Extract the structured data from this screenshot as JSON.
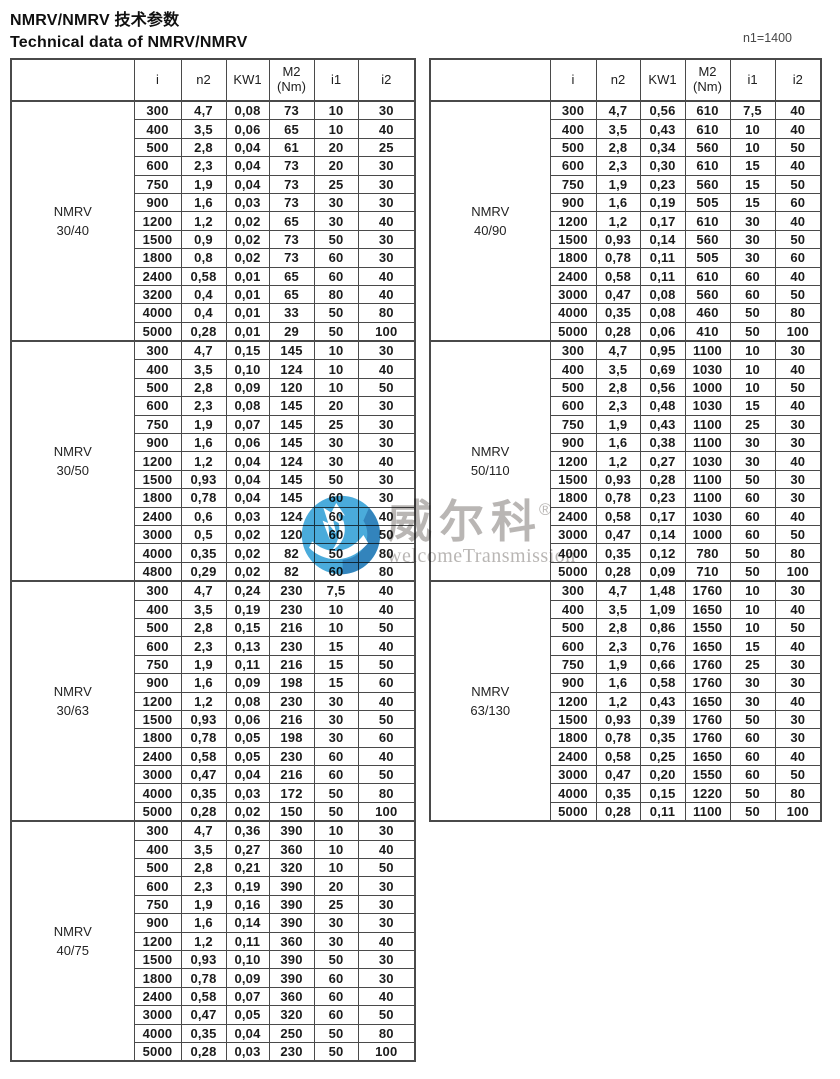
{
  "page": {
    "title_zh": "NMRV/NMRV 技术参数",
    "title_en": "Technical data of NMRV/NMRV",
    "note": "n1=1400"
  },
  "columns": [
    "i",
    "n2",
    "KW1",
    "M2\n(Nm)",
    "i1",
    "i2"
  ],
  "colors": {
    "border": "#4a4a4a",
    "text": "#1b1b1b",
    "logo_blue": "#3aa4d8",
    "logo_dark_blue": "#1d72b2",
    "watermark_gray": "#b3b0ae"
  },
  "watermark": {
    "brand_zh": "威尔科",
    "registered": "®",
    "brand_en": "welcomeTransmission"
  },
  "tables": [
    {
      "sections": [
        {
          "model": "NMRV",
          "size": "30/40",
          "rows": [
            [
              "300",
              "4,7",
              "0,08",
              "73",
              "10",
              "30"
            ],
            [
              "400",
              "3,5",
              "0,06",
              "65",
              "10",
              "40"
            ],
            [
              "500",
              "2,8",
              "0,04",
              "61",
              "20",
              "25"
            ],
            [
              "600",
              "2,3",
              "0,04",
              "73",
              "20",
              "30"
            ],
            [
              "750",
              "1,9",
              "0,04",
              "73",
              "25",
              "30"
            ],
            [
              "900",
              "1,6",
              "0,03",
              "73",
              "30",
              "30"
            ],
            [
              "1200",
              "1,2",
              "0,02",
              "65",
              "30",
              "40"
            ],
            [
              "1500",
              "0,9",
              "0,02",
              "73",
              "50",
              "30"
            ],
            [
              "1800",
              "0,8",
              "0,02",
              "73",
              "60",
              "30"
            ],
            [
              "2400",
              "0,58",
              "0,01",
              "65",
              "60",
              "40"
            ],
            [
              "3200",
              "0,4",
              "0,01",
              "65",
              "80",
              "40"
            ],
            [
              "4000",
              "0,4",
              "0,01",
              "33",
              "50",
              "80"
            ],
            [
              "5000",
              "0,28",
              "0,01",
              "29",
              "50",
              "100"
            ]
          ]
        },
        {
          "model": "NMRV",
          "size": "30/50",
          "rows": [
            [
              "300",
              "4,7",
              "0,15",
              "145",
              "10",
              "30"
            ],
            [
              "400",
              "3,5",
              "0,10",
              "124",
              "10",
              "40"
            ],
            [
              "500",
              "2,8",
              "0,09",
              "120",
              "10",
              "50"
            ],
            [
              "600",
              "2,3",
              "0,08",
              "145",
              "20",
              "30"
            ],
            [
              "750",
              "1,9",
              "0,07",
              "145",
              "25",
              "30"
            ],
            [
              "900",
              "1,6",
              "0,06",
              "145",
              "30",
              "30"
            ],
            [
              "1200",
              "1,2",
              "0,04",
              "124",
              "30",
              "40"
            ],
            [
              "1500",
              "0,93",
              "0,04",
              "145",
              "50",
              "30"
            ],
            [
              "1800",
              "0,78",
              "0,04",
              "145",
              "60",
              "30"
            ],
            [
              "2400",
              "0,6",
              "0,03",
              "124",
              "60",
              "40"
            ],
            [
              "3000",
              "0,5",
              "0,02",
              "120",
              "60",
              "50"
            ],
            [
              "4000",
              "0,35",
              "0,02",
              "82",
              "50",
              "80"
            ],
            [
              "4800",
              "0,29",
              "0,02",
              "82",
              "60",
              "80"
            ]
          ]
        },
        {
          "model": "NMRV",
          "size": "30/63",
          "rows": [
            [
              "300",
              "4,7",
              "0,24",
              "230",
              "7,5",
              "40"
            ],
            [
              "400",
              "3,5",
              "0,19",
              "230",
              "10",
              "40"
            ],
            [
              "500",
              "2,8",
              "0,15",
              "216",
              "10",
              "50"
            ],
            [
              "600",
              "2,3",
              "0,13",
              "230",
              "15",
              "40"
            ],
            [
              "750",
              "1,9",
              "0,11",
              "216",
              "15",
              "50"
            ],
            [
              "900",
              "1,6",
              "0,09",
              "198",
              "15",
              "60"
            ],
            [
              "1200",
              "1,2",
              "0,08",
              "230",
              "30",
              "40"
            ],
            [
              "1500",
              "0,93",
              "0,06",
              "216",
              "30",
              "50"
            ],
            [
              "1800",
              "0,78",
              "0,05",
              "198",
              "30",
              "60"
            ],
            [
              "2400",
              "0,58",
              "0,05",
              "230",
              "60",
              "40"
            ],
            [
              "3000",
              "0,47",
              "0,04",
              "216",
              "60",
              "50"
            ],
            [
              "4000",
              "0,35",
              "0,03",
              "172",
              "50",
              "80"
            ],
            [
              "5000",
              "0,28",
              "0,02",
              "150",
              "50",
              "100"
            ]
          ]
        },
        {
          "model": "NMRV",
          "size": "40/75",
          "rows": [
            [
              "300",
              "4,7",
              "0,36",
              "390",
              "10",
              "30"
            ],
            [
              "400",
              "3,5",
              "0,27",
              "360",
              "10",
              "40"
            ],
            [
              "500",
              "2,8",
              "0,21",
              "320",
              "10",
              "50"
            ],
            [
              "600",
              "2,3",
              "0,19",
              "390",
              "20",
              "30"
            ],
            [
              "750",
              "1,9",
              "0,16",
              "390",
              "25",
              "30"
            ],
            [
              "900",
              "1,6",
              "0,14",
              "390",
              "30",
              "30"
            ],
            [
              "1200",
              "1,2",
              "0,11",
              "360",
              "30",
              "40"
            ],
            [
              "1500",
              "0,93",
              "0,10",
              "390",
              "50",
              "30"
            ],
            [
              "1800",
              "0,78",
              "0,09",
              "390",
              "60",
              "30"
            ],
            [
              "2400",
              "0,58",
              "0,07",
              "360",
              "60",
              "40"
            ],
            [
              "3000",
              "0,47",
              "0,05",
              "320",
              "60",
              "50"
            ],
            [
              "4000",
              "0,35",
              "0,04",
              "250",
              "50",
              "80"
            ],
            [
              "5000",
              "0,28",
              "0,03",
              "230",
              "50",
              "100"
            ]
          ]
        }
      ]
    },
    {
      "sections": [
        {
          "model": "NMRV",
          "size": "40/90",
          "rows": [
            [
              "300",
              "4,7",
              "0,56",
              "610",
              "7,5",
              "40"
            ],
            [
              "400",
              "3,5",
              "0,43",
              "610",
              "10",
              "40"
            ],
            [
              "500",
              "2,8",
              "0,34",
              "560",
              "10",
              "50"
            ],
            [
              "600",
              "2,3",
              "0,30",
              "610",
              "15",
              "40"
            ],
            [
              "750",
              "1,9",
              "0,23",
              "560",
              "15",
              "50"
            ],
            [
              "900",
              "1,6",
              "0,19",
              "505",
              "15",
              "60"
            ],
            [
              "1200",
              "1,2",
              "0,17",
              "610",
              "30",
              "40"
            ],
            [
              "1500",
              "0,93",
              "0,14",
              "560",
              "30",
              "50"
            ],
            [
              "1800",
              "0,78",
              "0,11",
              "505",
              "30",
              "60"
            ],
            [
              "2400",
              "0,58",
              "0,11",
              "610",
              "60",
              "40"
            ],
            [
              "3000",
              "0,47",
              "0,08",
              "560",
              "60",
              "50"
            ],
            [
              "4000",
              "0,35",
              "0,08",
              "460",
              "50",
              "80"
            ],
            [
              "5000",
              "0,28",
              "0,06",
              "410",
              "50",
              "100"
            ]
          ]
        },
        {
          "model": "NMRV",
          "size": "50/110",
          "rows": [
            [
              "300",
              "4,7",
              "0,95",
              "1100",
              "10",
              "30"
            ],
            [
              "400",
              "3,5",
              "0,69",
              "1030",
              "10",
              "40"
            ],
            [
              "500",
              "2,8",
              "0,56",
              "1000",
              "10",
              "50"
            ],
            [
              "600",
              "2,3",
              "0,48",
              "1030",
              "15",
              "40"
            ],
            [
              "750",
              "1,9",
              "0,43",
              "1100",
              "25",
              "30"
            ],
            [
              "900",
              "1,6",
              "0,38",
              "1100",
              "30",
              "30"
            ],
            [
              "1200",
              "1,2",
              "0,27",
              "1030",
              "30",
              "40"
            ],
            [
              "1500",
              "0,93",
              "0,28",
              "1100",
              "50",
              "30"
            ],
            [
              "1800",
              "0,78",
              "0,23",
              "1100",
              "60",
              "30"
            ],
            [
              "2400",
              "0,58",
              "0,17",
              "1030",
              "60",
              "40"
            ],
            [
              "3000",
              "0,47",
              "0,14",
              "1000",
              "60",
              "50"
            ],
            [
              "4000",
              "0,35",
              "0,12",
              "780",
              "50",
              "80"
            ],
            [
              "5000",
              "0,28",
              "0,09",
              "710",
              "50",
              "100"
            ]
          ]
        },
        {
          "model": "NMRV",
          "size": "63/130",
          "rows": [
            [
              "300",
              "4,7",
              "1,48",
              "1760",
              "10",
              "30"
            ],
            [
              "400",
              "3,5",
              "1,09",
              "1650",
              "10",
              "40"
            ],
            [
              "500",
              "2,8",
              "0,86",
              "1550",
              "10",
              "50"
            ],
            [
              "600",
              "2,3",
              "0,76",
              "1650",
              "15",
              "40"
            ],
            [
              "750",
              "1,9",
              "0,66",
              "1760",
              "25",
              "30"
            ],
            [
              "900",
              "1,6",
              "0,58",
              "1760",
              "30",
              "30"
            ],
            [
              "1200",
              "1,2",
              "0,43",
              "1650",
              "30",
              "40"
            ],
            [
              "1500",
              "0,93",
              "0,39",
              "1760",
              "50",
              "30"
            ],
            [
              "1800",
              "0,78",
              "0,35",
              "1760",
              "60",
              "30"
            ],
            [
              "2400",
              "0,58",
              "0,25",
              "1650",
              "60",
              "40"
            ],
            [
              "3000",
              "0,47",
              "0,20",
              "1550",
              "60",
              "50"
            ],
            [
              "4000",
              "0,35",
              "0,15",
              "1220",
              "50",
              "80"
            ],
            [
              "5000",
              "0,28",
              "0,11",
              "1100",
              "50",
              "100"
            ]
          ]
        }
      ]
    }
  ]
}
